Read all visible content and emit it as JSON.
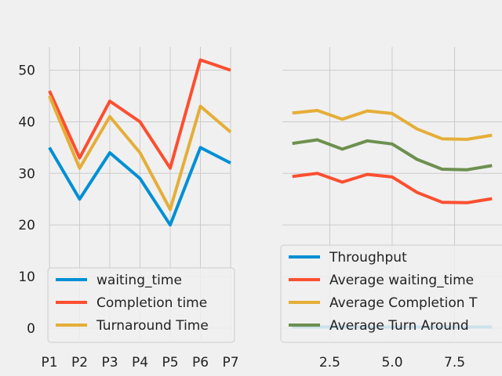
{
  "colors": {
    "figure_bg": "#f0f0f0",
    "grid": "#cbcbcb",
    "legend_bg": "#f0f0f0",
    "legend_edge": "#cccccc",
    "blue": "#008fd5",
    "red": "#fc4f30",
    "yellow": "#e5ae38",
    "green": "#6d904f"
  },
  "chart_data": [
    {
      "type": "line",
      "style": "fivethirtyeight",
      "categories": [
        "P1",
        "P2",
        "P3",
        "P4",
        "P5",
        "P6",
        "P7"
      ],
      "ylim": [
        -2,
        54.5
      ],
      "yticks": [
        0,
        10,
        20,
        30,
        40,
        50
      ],
      "ytick_labels": [
        "0",
        "10",
        "20",
        "30",
        "40",
        "50"
      ],
      "grid": true,
      "legend_position": "lower-left",
      "series": [
        {
          "name": "waiting_time",
          "color": "#008fd5",
          "values": [
            35,
            25,
            34,
            29,
            20,
            35,
            32
          ]
        },
        {
          "name": "Completion time",
          "color": "#fc4f30",
          "values": [
            46,
            33,
            44,
            40,
            31,
            52,
            50
          ]
        },
        {
          "name": "Turnaround Time",
          "color": "#e5ae38",
          "values": [
            45,
            31,
            41,
            34,
            23,
            43,
            38
          ]
        }
      ]
    },
    {
      "type": "line",
      "style": "fivethirtyeight",
      "xlim": [
        0.6,
        9.4
      ],
      "ylim": [
        -2,
        54.5
      ],
      "xticks": [
        2.5,
        5.0,
        7.5
      ],
      "xtick_labels": [
        "2.5",
        "5.0",
        "7.5"
      ],
      "yticks": [
        0,
        10,
        20,
        30,
        40,
        50
      ],
      "grid": true,
      "shared_y": true,
      "legend_position": "lower-left",
      "series": [
        {
          "name": "Throughput",
          "color": "#008fd5",
          "x": [
            1,
            2,
            3,
            4,
            5,
            6,
            7,
            8,
            9
          ],
          "values": [
            0.2,
            0.2,
            0.2,
            0.2,
            0.2,
            0.2,
            0.2,
            0.2,
            0.2
          ]
        },
        {
          "name": "Average waiting_time",
          "color": "#fc4f30",
          "x": [
            1,
            2,
            3,
            4,
            5,
            6,
            7,
            8,
            9
          ],
          "values": [
            29.4,
            30.0,
            28.3,
            29.8,
            29.3,
            26.3,
            24.4,
            24.3,
            25.1
          ]
        },
        {
          "name": "Average Completion T",
          "color": "#e5ae38",
          "x": [
            1,
            2,
            3,
            4,
            5,
            6,
            7,
            8,
            9
          ],
          "values": [
            41.7,
            42.2,
            40.5,
            42.1,
            41.6,
            38.6,
            36.7,
            36.6,
            37.4
          ]
        },
        {
          "name": "Average Turn Around",
          "color": "#6d904f",
          "x": [
            1,
            2,
            3,
            4,
            5,
            6,
            7,
            8,
            9
          ],
          "values": [
            35.8,
            36.5,
            34.7,
            36.3,
            35.7,
            32.7,
            30.8,
            30.7,
            31.5
          ]
        }
      ]
    }
  ]
}
